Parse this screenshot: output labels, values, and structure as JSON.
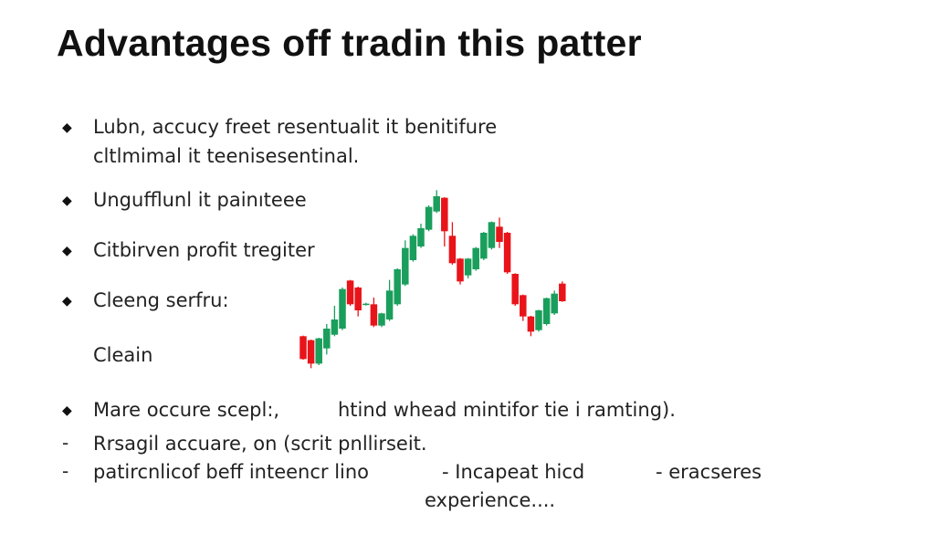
{
  "title": "Advantages off tradin this patter",
  "bullets": [
    {
      "marker": "◆",
      "lines": [
        "Lubn, accucy freet resentualit it benitifure",
        "cltlmimal it teenisesentinal."
      ]
    },
    {
      "marker": "◆",
      "text": "Ungufflunl it painıteee"
    },
    {
      "marker": "◆",
      "text": "Citbirven profit tregiter"
    },
    {
      "marker": "◆",
      "text": "Cleeng serfru:"
    },
    {
      "marker": "",
      "text": "Cleain"
    },
    {
      "marker": "◆",
      "text": "Mare occure scepl:,",
      "text2": "htind whead mintifor tie i ramting)."
    },
    {
      "marker": "-",
      "text": "Rrsagil accuare, on  (scrit pnllirseit."
    },
    {
      "marker": "-",
      "text": "patircnlicof beff inteencr lino",
      "text2": "- Incapeat hicd",
      "text3": "-  eracseres",
      "text4": "experience...."
    }
  ],
  "chart_data": {
    "type": "candlestick",
    "title": "",
    "xlabel": "",
    "ylabel": "",
    "axes_visible": false,
    "grid": false,
    "colors": {
      "up": "#1a9e5c",
      "down": "#e8141a"
    },
    "candles": [
      {
        "o": 135,
        "h": 137,
        "l": 58,
        "c": 60
      },
      {
        "o": 122,
        "h": 124,
        "l": 30,
        "c": 45
      },
      {
        "o": 45,
        "h": 130,
        "l": 40,
        "c": 128
      },
      {
        "o": 95,
        "h": 175,
        "l": 75,
        "c": 160
      },
      {
        "o": 140,
        "h": 235,
        "l": 135,
        "c": 190
      },
      {
        "o": 160,
        "h": 295,
        "l": 155,
        "c": 290
      },
      {
        "o": 318,
        "h": 320,
        "l": 235,
        "c": 240
      },
      {
        "o": 295,
        "h": 298,
        "l": 200,
        "c": 220
      },
      {
        "o": 238,
        "h": 245,
        "l": 236,
        "c": 242
      },
      {
        "o": 240,
        "h": 262,
        "l": 165,
        "c": 170
      },
      {
        "o": 170,
        "h": 212,
        "l": 165,
        "c": 210
      },
      {
        "o": 190,
        "h": 320,
        "l": 185,
        "c": 285
      },
      {
        "o": 240,
        "h": 358,
        "l": 235,
        "c": 355
      },
      {
        "o": 305,
        "h": 450,
        "l": 300,
        "c": 425
      },
      {
        "o": 385,
        "h": 470,
        "l": 380,
        "c": 465
      },
      {
        "o": 430,
        "h": 505,
        "l": 425,
        "c": 490
      },
      {
        "o": 485,
        "h": 565,
        "l": 480,
        "c": 560
      },
      {
        "o": 545,
        "h": 615,
        "l": 540,
        "c": 595
      },
      {
        "o": 590,
        "h": 592,
        "l": 430,
        "c": 480
      },
      {
        "o": 465,
        "h": 510,
        "l": 370,
        "c": 375
      },
      {
        "o": 390,
        "h": 392,
        "l": 305,
        "c": 315
      },
      {
        "o": 335,
        "h": 392,
        "l": 325,
        "c": 390
      },
      {
        "o": 355,
        "h": 428,
        "l": 350,
        "c": 425
      },
      {
        "o": 390,
        "h": 478,
        "l": 385,
        "c": 475
      },
      {
        "o": 425,
        "h": 512,
        "l": 420,
        "c": 510
      },
      {
        "o": 495,
        "h": 525,
        "l": 425,
        "c": 445
      },
      {
        "o": 475,
        "h": 478,
        "l": 340,
        "c": 345
      },
      {
        "o": 340,
        "h": 342,
        "l": 235,
        "c": 240
      },
      {
        "o": 270,
        "h": 272,
        "l": 185,
        "c": 200
      },
      {
        "o": 200,
        "h": 202,
        "l": 135,
        "c": 150
      },
      {
        "o": 155,
        "h": 222,
        "l": 150,
        "c": 220
      },
      {
        "o": 175,
        "h": 262,
        "l": 170,
        "c": 260
      },
      {
        "o": 210,
        "h": 285,
        "l": 205,
        "c": 275
      },
      {
        "o": 308,
        "h": 315,
        "l": 248,
        "c": 250
      }
    ]
  }
}
